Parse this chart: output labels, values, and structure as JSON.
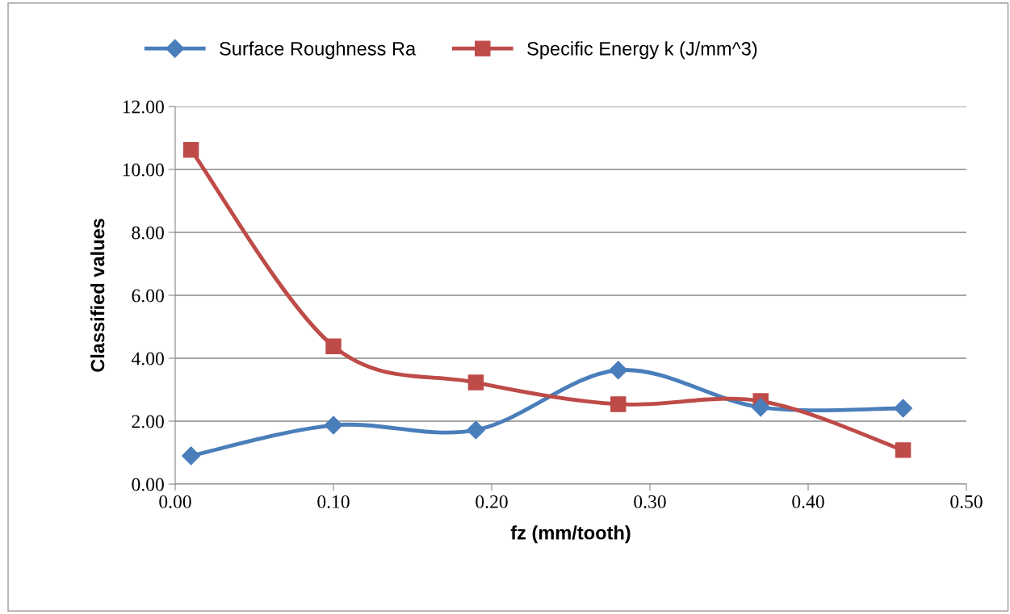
{
  "chart_data": {
    "type": "line",
    "xlabel": "fz (mm/tooth)",
    "ylabel": "Classified values",
    "x": [
      0.01,
      0.1,
      0.19,
      0.28,
      0.37,
      0.46
    ],
    "series": [
      {
        "name": "Surface Roughness Ra",
        "color": "#4a7ebb",
        "marker": "diamond",
        "values": [
          0.9,
          1.87,
          1.72,
          3.62,
          2.44,
          2.41
        ]
      },
      {
        "name": "Specific Energy k (J/mm^3)",
        "color": "#be4b48",
        "marker": "square",
        "values": [
          10.62,
          4.38,
          3.23,
          2.54,
          2.64,
          1.08
        ]
      }
    ],
    "xlim": [
      0,
      0.5
    ],
    "xticks": [
      {
        "value": 0,
        "label": "0.00"
      },
      {
        "value": 0.1,
        "label": "0.10"
      },
      {
        "value": 0.2,
        "label": "0.20"
      },
      {
        "value": 0.3,
        "label": "0.30"
      },
      {
        "value": 0.4,
        "label": "0.40"
      },
      {
        "value": 0.5,
        "label": "0.50"
      }
    ],
    "ylim": [
      0,
      12
    ],
    "yticks": [
      {
        "value": 0,
        "label": "0.00"
      },
      {
        "value": 2,
        "label": "2.00"
      },
      {
        "value": 4,
        "label": "4.00"
      },
      {
        "value": 6,
        "label": "6.00"
      },
      {
        "value": 8,
        "label": "8.00"
      },
      {
        "value": 10,
        "label": "10.00"
      },
      {
        "value": 12,
        "label": "12.00"
      }
    ],
    "grid": "y",
    "legend": "top",
    "line_style": "solid"
  }
}
